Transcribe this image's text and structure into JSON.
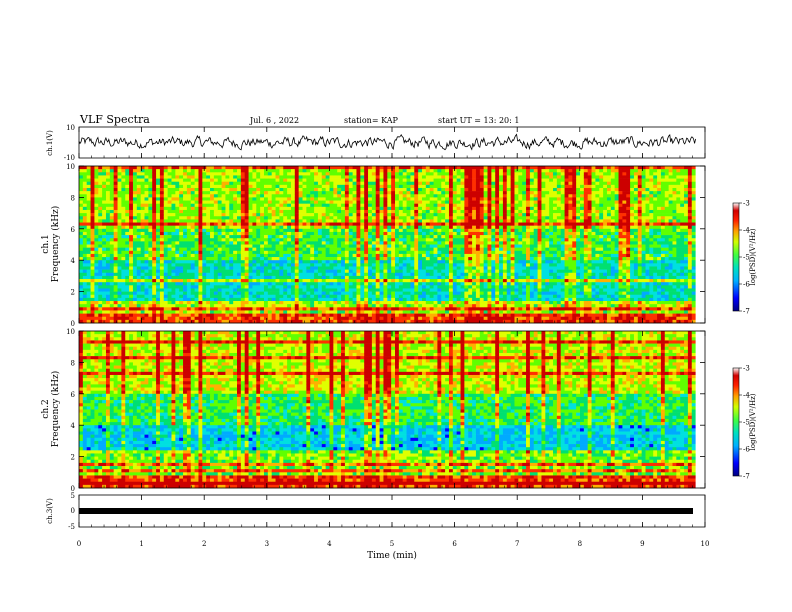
{
  "header": {
    "title": "VLF Spectra",
    "date": "Jul. 6 , 2022",
    "station": "station= KAP",
    "start_ut": "start UT = 13: 20: 1"
  },
  "panels": {
    "ch1_wave": {
      "ylabel": "ch.1(V)",
      "ticks": [
        "10",
        "-10"
      ]
    },
    "ch1_spec": {
      "ylabel_top": "ch.1",
      "ylabel": "Frequency (kHz)"
    },
    "ch2_spec": {
      "ylabel_top": "ch.2",
      "ylabel": "Frequency (kHz)"
    },
    "ch3_wave": {
      "ylabel": "ch.3(V)",
      "ticks": [
        "5",
        "0",
        "-5"
      ]
    }
  },
  "colorbar": {
    "label": "log(PSD)(V²/Hz)",
    "ticks": [
      "-3",
      "-4",
      "-5",
      "-6",
      "-7"
    ]
  },
  "colors": [
    "#000080",
    "#0000ff",
    "#00aaff",
    "#00e0e0",
    "#00e070",
    "#60ff00",
    "#e0ff00",
    "#ffb000",
    "#ff3000",
    "#cc0000"
  ],
  "chart_data": [
    {
      "type": "line",
      "title": "VLF Spectra",
      "xlabel": "",
      "ylabel": "ch.1(V)",
      "xlim": [
        0,
        10
      ],
      "ylim": [
        -10,
        10
      ],
      "x_unit": "min",
      "description": "noisy waveform fluctuating around 0 V with amplitude ~3 V, covering 0–9.85 min"
    },
    {
      "type": "heatmap",
      "xlabel": "",
      "ylabel": "Frequency (kHz)",
      "panel": "ch.1",
      "xlim": [
        0,
        10
      ],
      "ylim": [
        0,
        10
      ],
      "x_ticks": [
        "0",
        "1",
        "2",
        "3",
        "4",
        "5",
        "6",
        "7",
        "8",
        "9",
        "10"
      ],
      "y_ticks": [
        "0",
        "2",
        "4",
        "6",
        "8",
        "10"
      ],
      "colorbar": {
        "label": "log(PSD)(V²/Hz)",
        "range": [
          -7,
          -3
        ]
      }
    },
    {
      "type": "heatmap",
      "xlabel": "",
      "ylabel": "Frequency (kHz)",
      "panel": "ch.2",
      "xlim": [
        0,
        10
      ],
      "ylim": [
        0,
        10
      ],
      "x_ticks": [
        "0",
        "1",
        "2",
        "3",
        "4",
        "5",
        "6",
        "7",
        "8",
        "9",
        "10"
      ],
      "y_ticks": [
        "0",
        "2",
        "4",
        "6",
        "8",
        "10"
      ],
      "colorbar": {
        "label": "log(PSD)(V²/Hz)",
        "range": [
          -7,
          -3
        ]
      }
    },
    {
      "type": "line",
      "xlabel": "Time (min)",
      "ylabel": "ch.3(V)",
      "xlim": [
        0,
        10
      ],
      "ylim": [
        -5,
        5
      ],
      "x_ticks": [
        "0",
        "1",
        "2",
        "3",
        "4",
        "5",
        "6",
        "7",
        "8",
        "9",
        "10"
      ],
      "description": "thick flat trace near 0 V from 0 to ~9.85 min"
    }
  ]
}
